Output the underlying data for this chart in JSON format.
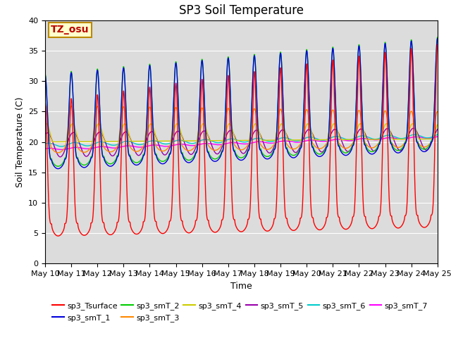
{
  "title": "SP3 Soil Temperature",
  "xlabel": "Time",
  "ylabel": "Soil Temperature (C)",
  "ylim": [
    0,
    40
  ],
  "n_days": 15,
  "points_per_day": 288,
  "background_color": "#dcdcdc",
  "legend_entries": [
    "sp3_Tsurface",
    "sp3_smT_1",
    "sp3_smT_2",
    "sp3_smT_3",
    "sp3_smT_4",
    "sp3_smT_5",
    "sp3_smT_6",
    "sp3_smT_7"
  ],
  "line_colors": [
    "#ff0000",
    "#0000dd",
    "#00cc00",
    "#ff8800",
    "#cccc00",
    "#9900aa",
    "#00cccc",
    "#ff00ff"
  ],
  "annotation_text": "TZ_osu",
  "annotation_color": "#bb0000",
  "annotation_bg": "#ffffcc",
  "annotation_border": "#bb8800",
  "date_labels": [
    "May 10",
    "May 11",
    "May 12",
    "May 13",
    "May 14",
    "May 15",
    "May 16",
    "May 17",
    "May 18",
    "May 19",
    "May 20",
    "May 21",
    "May 22",
    "May 23",
    "May 24",
    "May 25"
  ],
  "figsize": [
    6.4,
    4.8
  ],
  "dpi": 100,
  "grid_color": "#ffffff",
  "title_fontsize": 12,
  "ylabel_fontsize": 9,
  "xlabel_fontsize": 9,
  "tick_fontsize": 8,
  "legend_fontsize": 8
}
